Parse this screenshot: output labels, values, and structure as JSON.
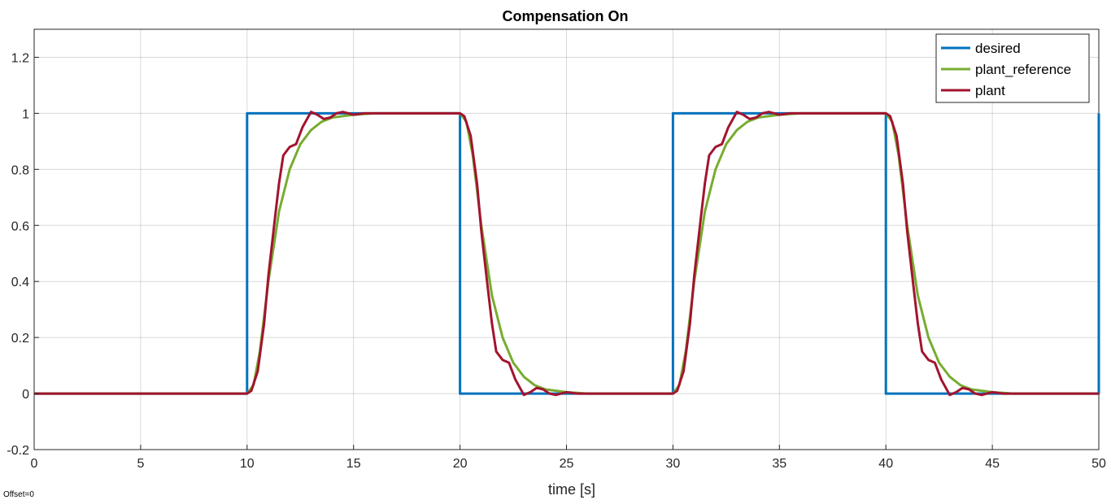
{
  "chart_data": {
    "type": "line",
    "title": "Compensation On",
    "xlabel": "time [s]",
    "ylabel": "",
    "xlim": [
      0,
      50
    ],
    "ylim": [
      -0.2,
      1.3
    ],
    "xticks": [
      0,
      5,
      10,
      15,
      20,
      25,
      30,
      35,
      40,
      45,
      50
    ],
    "yticks": [
      -0.2,
      0,
      0.2,
      0.4,
      0.6,
      0.8,
      1,
      1.2
    ],
    "ytick_labels": [
      "-0.2",
      "0",
      "0.2",
      "0.4",
      "0.6",
      "0.8",
      "1",
      "1.2"
    ],
    "grid": true,
    "legend_position": "top-right",
    "offset_label": "Offset=0",
    "series": [
      {
        "name": "desired",
        "color": "#0072BD",
        "x": [
          0,
          10,
          10,
          20,
          20,
          30,
          30,
          40,
          40,
          50,
          50
        ],
        "y": [
          0,
          0,
          1,
          1,
          0,
          0,
          1,
          1,
          0,
          0,
          1
        ]
      },
      {
        "name": "plant_reference",
        "color": "#77AC30",
        "x": [
          0,
          10,
          10.3,
          10.6,
          11,
          11.5,
          12,
          12.5,
          13,
          13.5,
          14,
          15,
          16,
          20,
          20.3,
          20.6,
          21,
          21.5,
          22,
          22.5,
          23,
          23.5,
          24,
          25,
          26,
          30,
          30.3,
          30.6,
          31,
          31.5,
          32,
          32.5,
          33,
          33.5,
          34,
          35,
          36,
          40,
          40.3,
          40.6,
          41,
          41.5,
          42,
          42.5,
          43,
          43.5,
          44,
          45,
          46,
          50
        ],
        "y": [
          0,
          0,
          0.03,
          0.15,
          0.4,
          0.65,
          0.8,
          0.89,
          0.94,
          0.97,
          0.985,
          0.995,
          1,
          1,
          0.97,
          0.85,
          0.6,
          0.35,
          0.2,
          0.11,
          0.06,
          0.03,
          0.015,
          0.005,
          0,
          0,
          0.03,
          0.15,
          0.4,
          0.65,
          0.8,
          0.89,
          0.94,
          0.97,
          0.985,
          0.995,
          1,
          1,
          0.97,
          0.85,
          0.6,
          0.35,
          0.2,
          0.11,
          0.06,
          0.03,
          0.015,
          0.005,
          0,
          0
        ]
      },
      {
        "name": "plant",
        "color": "#A2142F",
        "x": [
          0,
          10,
          10.2,
          10.5,
          10.8,
          11,
          11.3,
          11.5,
          11.7,
          12,
          12.3,
          12.6,
          13,
          13.3,
          13.6,
          13.9,
          14.2,
          14.5,
          15,
          15.5,
          16,
          20,
          20.2,
          20.5,
          20.8,
          21,
          21.3,
          21.5,
          21.7,
          22,
          22.3,
          22.6,
          23,
          23.3,
          23.6,
          23.9,
          24.2,
          24.5,
          25,
          25.5,
          26,
          30,
          30.2,
          30.5,
          30.8,
          31,
          31.3,
          31.5,
          31.7,
          32,
          32.3,
          32.6,
          33,
          33.3,
          33.6,
          33.9,
          34.2,
          34.5,
          35,
          35.5,
          36,
          40,
          40.2,
          40.5,
          40.8,
          41,
          41.3,
          41.5,
          41.7,
          42,
          42.3,
          42.6,
          43,
          43.3,
          43.6,
          43.9,
          44.2,
          44.5,
          45,
          45.5,
          46,
          50
        ],
        "y": [
          0,
          0,
          0.01,
          0.08,
          0.25,
          0.42,
          0.62,
          0.75,
          0.85,
          0.88,
          0.89,
          0.95,
          1.005,
          0.995,
          0.98,
          0.985,
          1.0,
          1.005,
          0.995,
          1.0,
          1.0,
          1.0,
          0.99,
          0.92,
          0.75,
          0.58,
          0.38,
          0.25,
          0.15,
          0.12,
          0.11,
          0.05,
          -0.005,
          0.005,
          0.02,
          0.015,
          0.0,
          -0.005,
          0.005,
          0.0,
          0.0,
          0.0,
          0.01,
          0.08,
          0.25,
          0.42,
          0.62,
          0.75,
          0.85,
          0.88,
          0.89,
          0.95,
          1.005,
          0.995,
          0.98,
          0.985,
          1.0,
          1.005,
          0.995,
          1.0,
          1.0,
          1.0,
          0.99,
          0.92,
          0.75,
          0.58,
          0.38,
          0.25,
          0.15,
          0.12,
          0.11,
          0.05,
          -0.005,
          0.005,
          0.02,
          0.015,
          0.0,
          -0.005,
          0.005,
          0.0,
          0.0,
          0.0
        ]
      }
    ]
  }
}
